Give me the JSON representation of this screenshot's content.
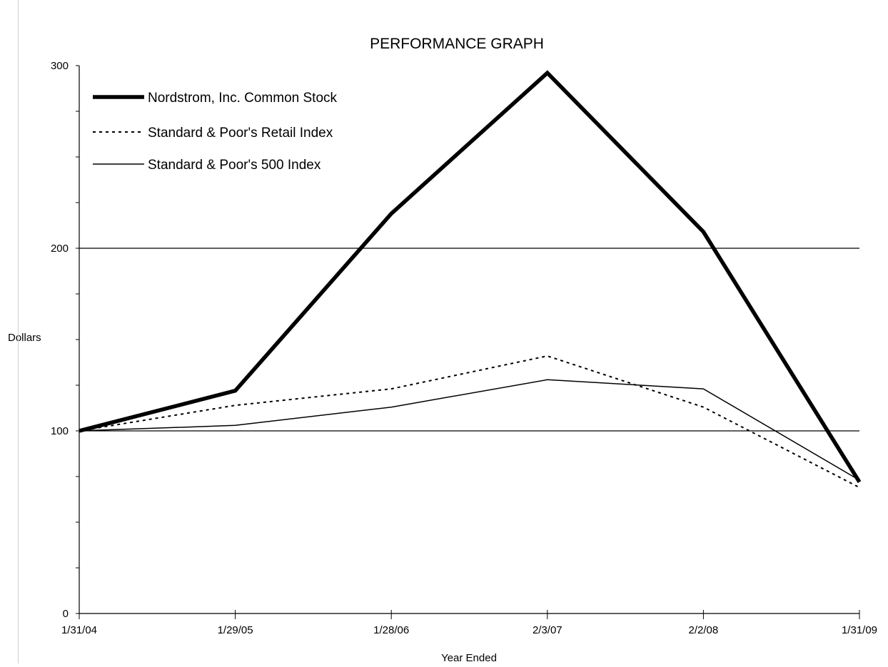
{
  "chart_data": {
    "type": "line",
    "title": "PERFORMANCE GRAPH",
    "xlabel": "Year Ended",
    "ylabel": "Dollars",
    "categories": [
      "1/31/04",
      "1/29/05",
      "1/28/06",
      "2/3/07",
      "2/2/08",
      "1/31/09"
    ],
    "ylim": [
      0,
      300
    ],
    "yticks": [
      0,
      100,
      200,
      300
    ],
    "grid": true,
    "gridlines": [
      100,
      200
    ],
    "legend_position": "top-left",
    "series": [
      {
        "name": "Nordstrom, Inc. Common Stock",
        "values": [
          100,
          122,
          219,
          296,
          209,
          72
        ],
        "style": "thick-solid",
        "color": "#000000"
      },
      {
        "name": "Standard & Poor's Retail Index",
        "values": [
          100,
          114,
          123,
          141,
          113,
          69
        ],
        "style": "dotted",
        "color": "#000000"
      },
      {
        "name": "Standard & Poor's 500 Index",
        "values": [
          100,
          103,
          113,
          128,
          123,
          73
        ],
        "style": "thin-solid",
        "color": "#000000"
      }
    ]
  }
}
